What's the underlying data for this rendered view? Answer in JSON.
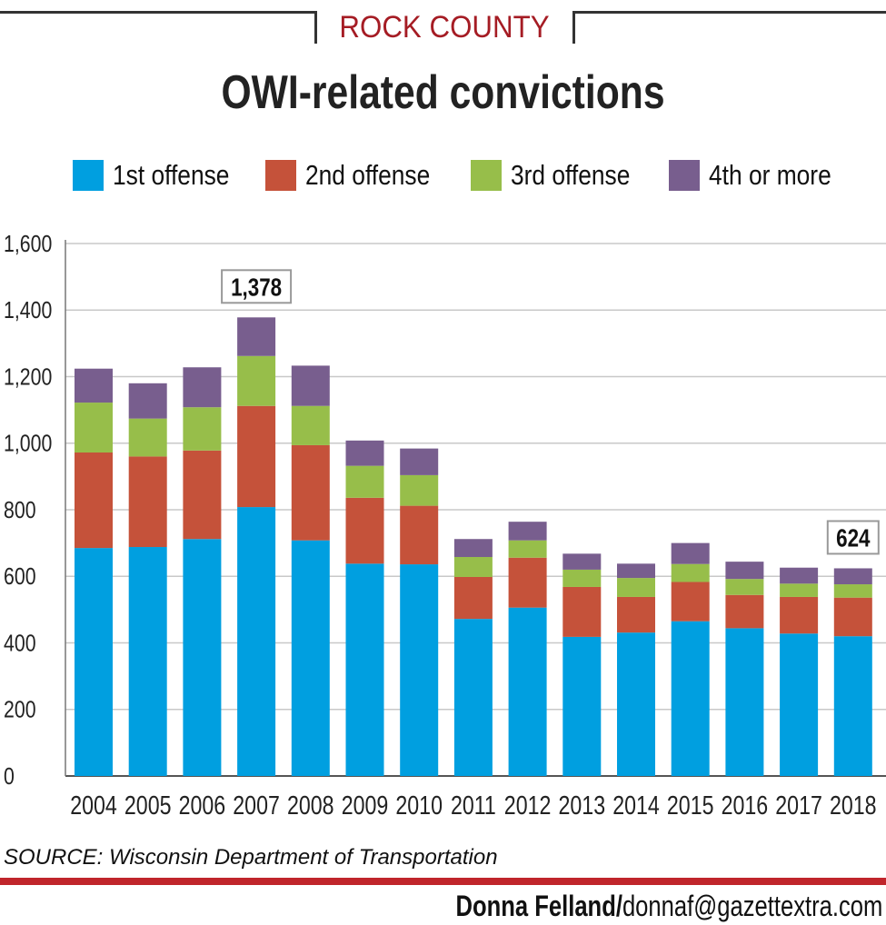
{
  "header": {
    "kicker": "ROCK COUNTY",
    "title": "OWI-related convictions"
  },
  "legend": [
    {
      "label": "1st offense",
      "color": "#009fe0"
    },
    {
      "label": "2nd offense",
      "color": "#c5523a"
    },
    {
      "label": "3rd offense",
      "color": "#97be4a"
    },
    {
      "label": "4th or more",
      "color": "#785e8e"
    }
  ],
  "chart_data": {
    "type": "bar",
    "stacked": true,
    "categories": [
      "2004",
      "2005",
      "2006",
      "2007",
      "2008",
      "2009",
      "2010",
      "2011",
      "2012",
      "2013",
      "2014",
      "2015",
      "2016",
      "2017",
      "2018"
    ],
    "series": [
      {
        "name": "1st offense",
        "color": "#009fe0",
        "values": [
          685,
          688,
          712,
          808,
          708,
          638,
          636,
          472,
          506,
          418,
          431,
          465,
          444,
          428,
          420
        ]
      },
      {
        "name": "2nd offense",
        "color": "#c5523a",
        "values": [
          287,
          272,
          266,
          304,
          286,
          198,
          176,
          126,
          150,
          150,
          107,
          118,
          100,
          110,
          116
        ]
      },
      {
        "name": "3rd offense",
        "color": "#97be4a",
        "values": [
          150,
          114,
          130,
          150,
          118,
          96,
          92,
          60,
          52,
          52,
          57,
          54,
          48,
          40,
          40
        ]
      },
      {
        "name": "4th or more",
        "color": "#785e8e",
        "values": [
          102,
          106,
          120,
          116,
          121,
          76,
          80,
          54,
          56,
          48,
          43,
          63,
          52,
          48,
          48
        ]
      }
    ],
    "ylim": [
      0,
      1600
    ],
    "yticks": [
      0,
      200,
      400,
      600,
      800,
      1000,
      1200,
      1400,
      1600
    ],
    "ytick_labels": [
      "0",
      "200",
      "400",
      "600",
      "800",
      "1,000",
      "1,200",
      "1,400",
      "1,600"
    ],
    "grid": true,
    "annotations": [
      {
        "category": "2007",
        "text": "1,378"
      },
      {
        "category": "2018",
        "text": "624"
      }
    ]
  },
  "footer": {
    "source": "SOURCE: Wisconsin Department of Transportation",
    "credit_name": "Donna Felland/",
    "credit_email": "donnaf@gazettextra.com"
  }
}
